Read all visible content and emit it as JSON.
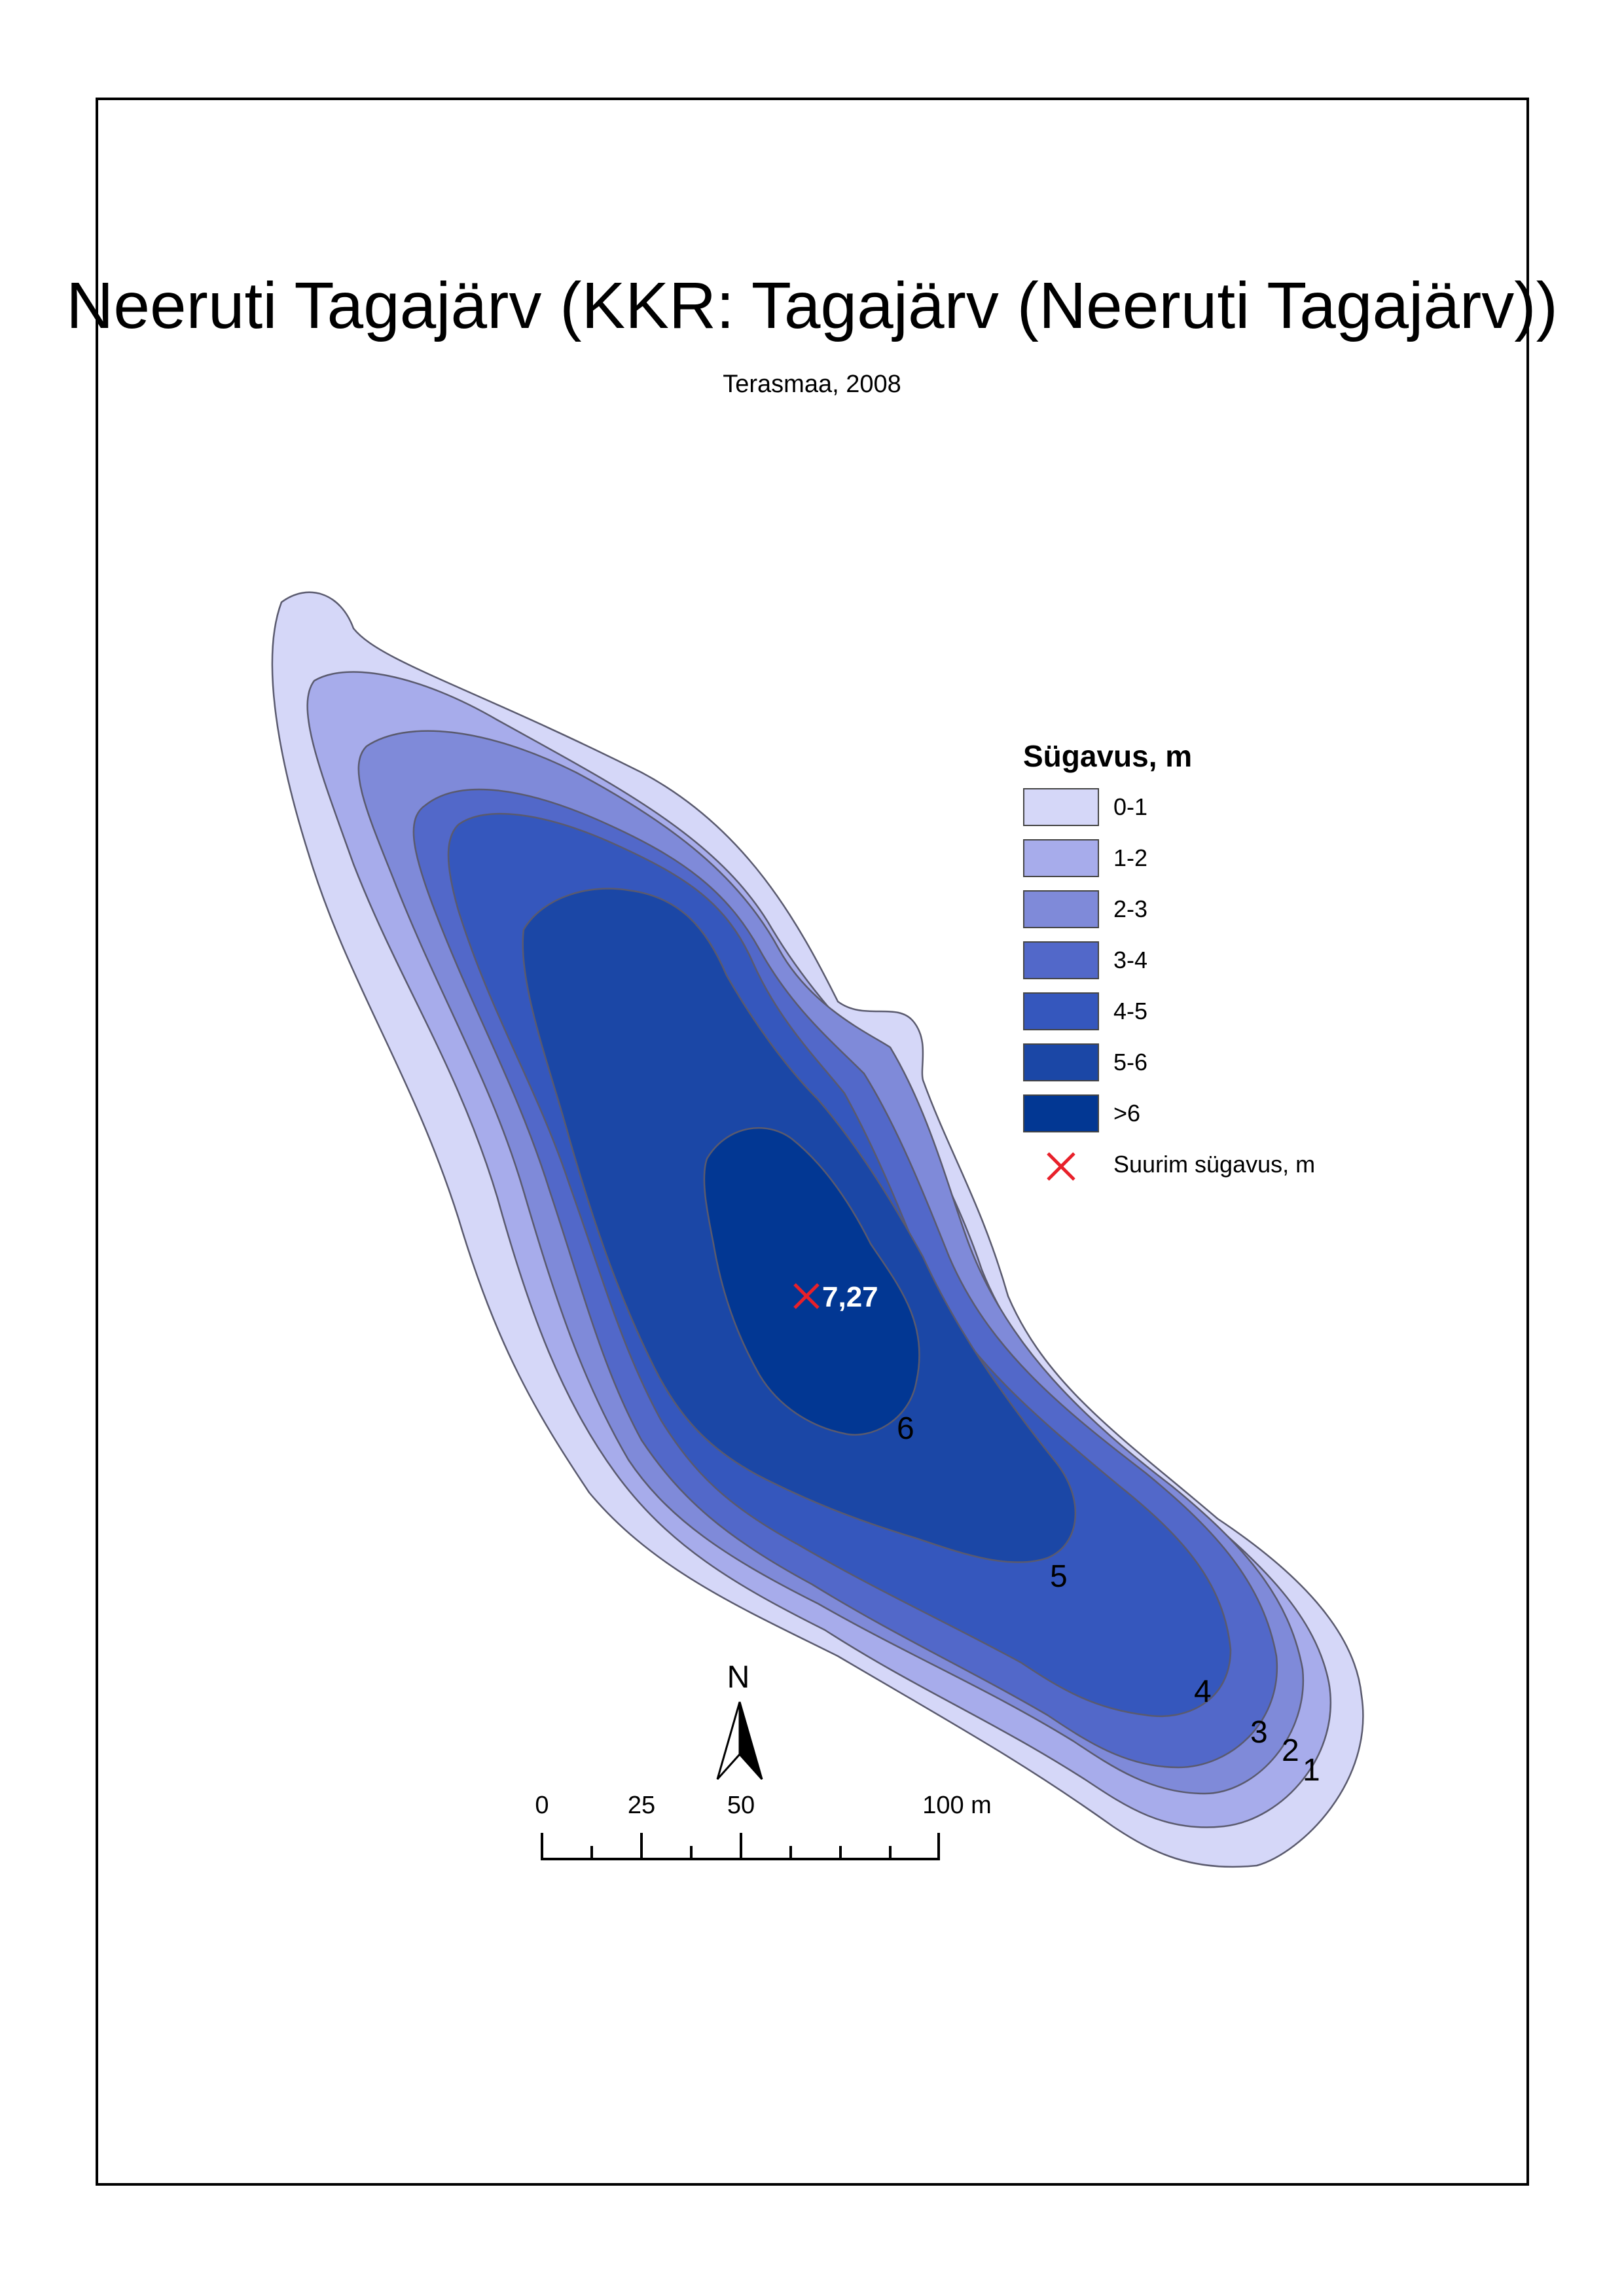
{
  "title": "Neeruti Tagajärv (KKR: Tagajärv (Neeruti Tagajärv))",
  "subtitle": "Terasmaa, 2008",
  "legend": {
    "title": "Sügavus, m",
    "classes": [
      {
        "label": "0-1",
        "color": "#d5d7f8"
      },
      {
        "label": "1-2",
        "color": "#a7aceb"
      },
      {
        "label": "2-3",
        "color": "#7f8ad9"
      },
      {
        "label": "3-4",
        "color": "#5268c9"
      },
      {
        "label": "4-5",
        "color": "#3557bd"
      },
      {
        "label": "5-6",
        "color": "#1b47a6"
      },
      {
        "label": ">6",
        "color": "#023793"
      }
    ],
    "marker_label": "Suurim sügavus, m",
    "marker_color": "#e8202a"
  },
  "max_depth": {
    "label": "7,27",
    "value": 7.27
  },
  "contour_labels": [
    "6",
    "5",
    "4",
    "3",
    "2",
    "1"
  ],
  "north_arrow": {
    "label": "N"
  },
  "scale_bar": {
    "labels": [
      "0",
      "25",
      "50",
      "100 m"
    ],
    "unit": "m"
  }
}
